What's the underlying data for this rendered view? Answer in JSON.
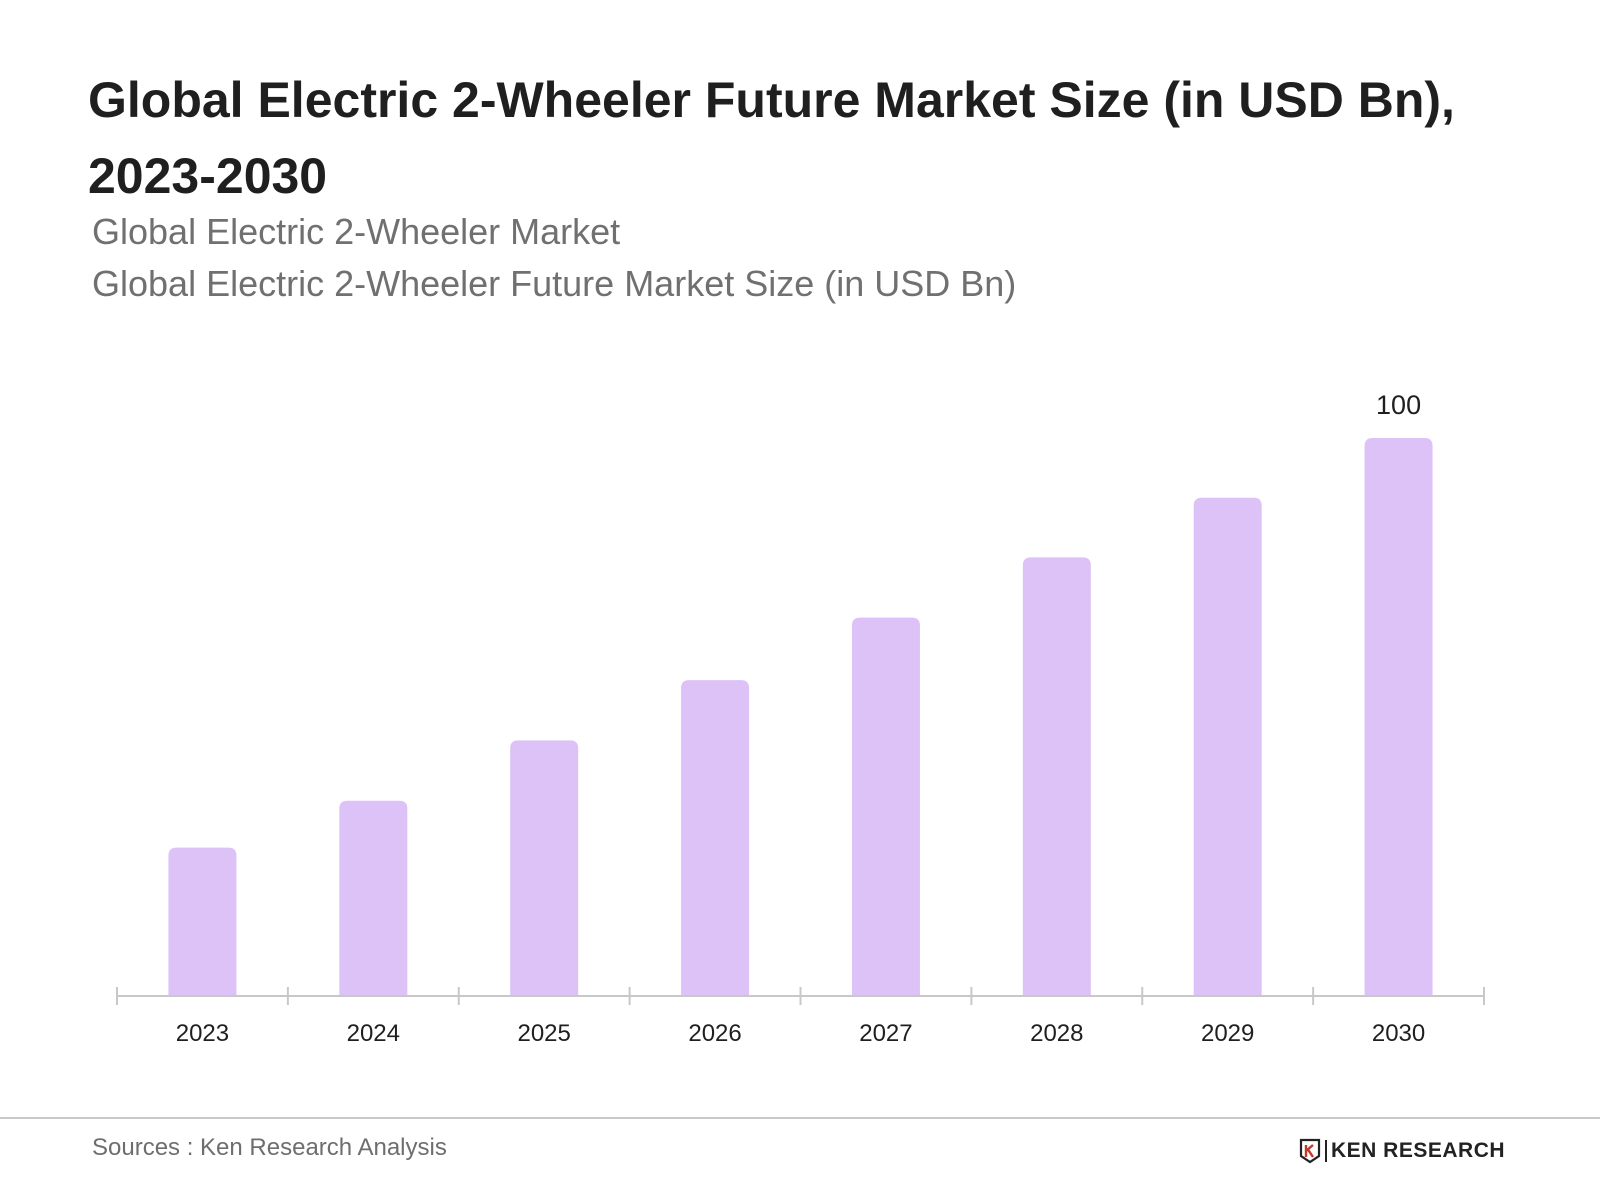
{
  "header": {
    "title": "Global Electric 2-Wheeler Future Market Size (in USD Bn), 2023-2030",
    "subtitle_1": "Global Electric 2-Wheeler Market",
    "subtitle_2": "Global Electric 2-Wheeler Future Market Size (in USD Bn)"
  },
  "footer": {
    "source": "Sources : Ken Research Analysis",
    "logo_text": "KEN RESEARCH"
  },
  "colors": {
    "bar": "#dcc2f7",
    "axis": "#c8c8c8",
    "label": "#1f1f1f"
  },
  "chart_data": {
    "type": "bar",
    "title": "Global Electric 2-Wheeler Future Market Size (in USD Bn), 2023-2030",
    "xlabel": "",
    "ylabel": "",
    "categories": [
      "2023",
      "2024",
      "2025",
      "2026",
      "2027",
      "2028",
      "2029",
      "2030"
    ],
    "values": [
      26.6,
      35,
      45.8,
      56.6,
      67.8,
      78.6,
      89.3,
      100
    ],
    "data_labels": {
      "2030": "100"
    },
    "ylim": [
      0,
      100
    ],
    "grid": false,
    "legend": "none"
  }
}
